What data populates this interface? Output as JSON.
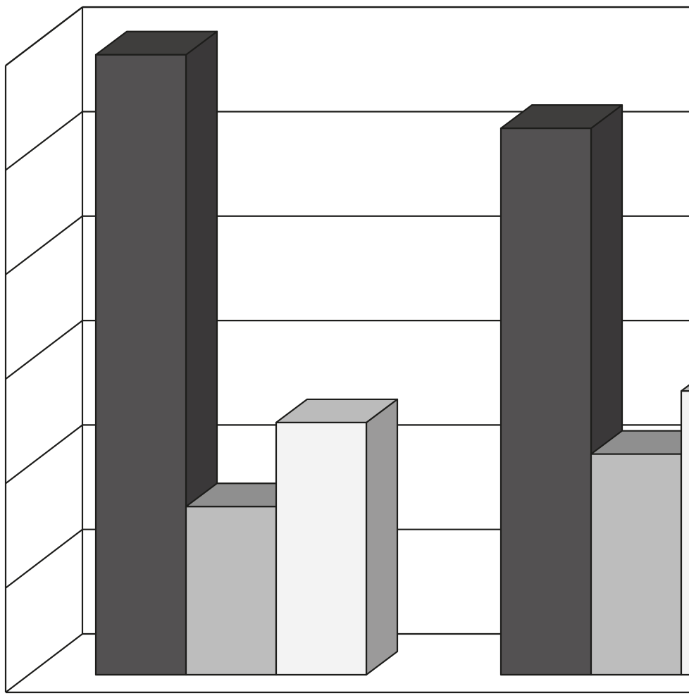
{
  "chart_data": {
    "type": "bar",
    "style": "3d-clustered",
    "grid": true,
    "legend": "none",
    "title": "",
    "xlabel": "",
    "ylabel": "",
    "ylim": [
      0,
      6
    ],
    "categories": [
      "",
      ""
    ],
    "series": [
      {
        "values": [
          5.9,
          5.2
        ],
        "colors": {
          "front": "#535152",
          "side": "#3a3839",
          "top": "#3f3e3d"
        }
      },
      {
        "values": [
          1.6,
          2.1
        ],
        "colors": {
          "front": "#bdbdbd",
          "side": "#8f8f8f",
          "top": "#8f8f8f"
        }
      },
      {
        "values": [
          2.4,
          2.7
        ],
        "colors": {
          "front": "#f3f3f3",
          "side": "#9b9a9a",
          "top": "#bbbbbb"
        }
      }
    ]
  }
}
